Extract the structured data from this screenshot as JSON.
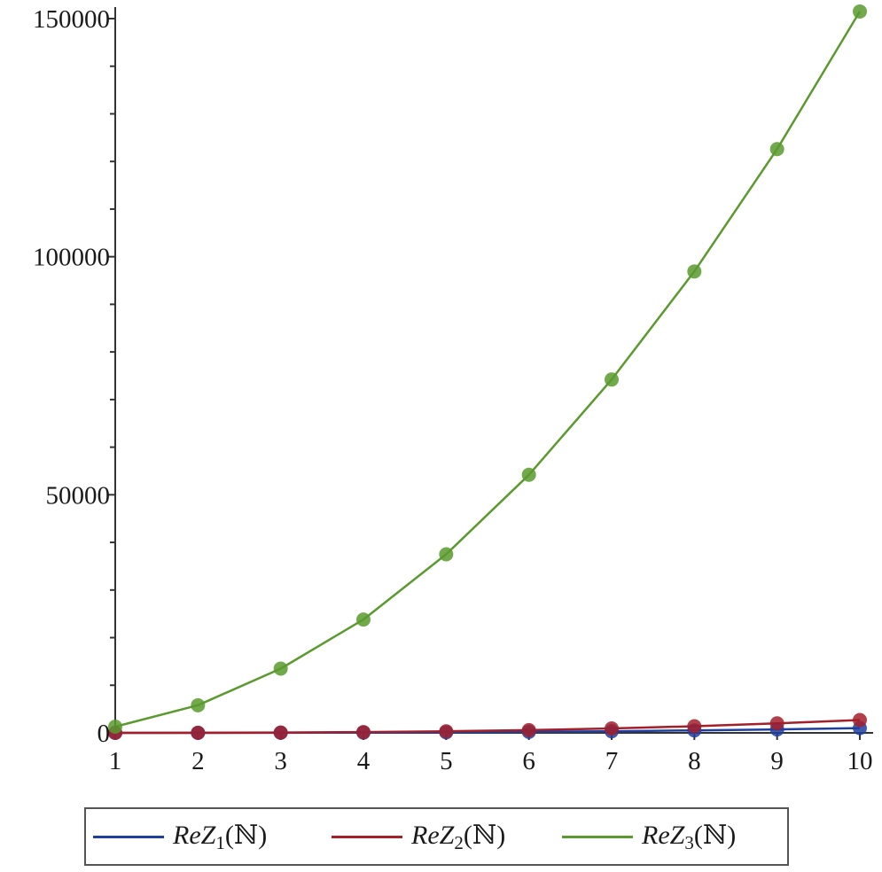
{
  "chart_data": {
    "type": "line",
    "x": [
      1,
      2,
      3,
      4,
      5,
      6,
      7,
      8,
      9,
      10
    ],
    "ylim": [
      0,
      150000
    ],
    "xlim": [
      1,
      10
    ],
    "x_ticks": [
      "1",
      "2",
      "3",
      "4",
      "5",
      "6",
      "7",
      "8",
      "9",
      "10"
    ],
    "y_ticks": [
      {
        "value": 0,
        "label": "0"
      },
      {
        "value": 50000,
        "label": "50000"
      },
      {
        "value": 100000,
        "label": "100000"
      },
      {
        "value": 150000,
        "label": "150000"
      }
    ],
    "grid": false,
    "legend_position": "bottom",
    "series": [
      {
        "name": "ReZ1(ℕ)",
        "name_base": "ReZ",
        "name_sub": "1",
        "name_arg": "(ℕ)",
        "color": "#1f3fa0",
        "values": [
          1,
          8,
          27,
          64,
          125,
          216,
          343,
          512,
          729,
          1000
        ]
      },
      {
        "name": "ReZ2(ℕ)",
        "name_base": "ReZ",
        "name_sub": "2",
        "name_arg": "(ℕ)",
        "color": "#a31f2a",
        "values": [
          2,
          20,
          70,
          170,
          330,
          580,
          930,
          1400,
          2000,
          2700
        ]
      },
      {
        "name": "ReZ3(ℕ)",
        "name_base": "ReZ",
        "name_sub": "3",
        "name_arg": "(ℕ)",
        "color": "#5a9a2e",
        "values": [
          1300,
          5800,
          13500,
          23800,
          37500,
          54200,
          74200,
          96900,
          122600,
          151500
        ]
      }
    ]
  }
}
